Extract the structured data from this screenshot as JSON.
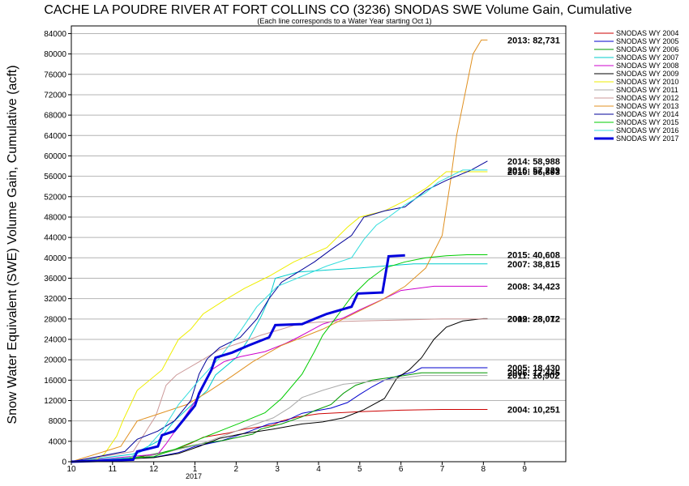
{
  "chart_data": {
    "type": "line",
    "title": "CACHE LA POUDRE RIVER AT FORT COLLINS CO (3236) SNODAS SWE Volume Gain, Cumulative",
    "subtitle": "(Each line corresponds to a Water Year starting Oct 1)",
    "ylabel": "Snow Water Equivalent (SWE) Volume Gain, Cumulative (acft)",
    "xlabel": "",
    "ylim": [
      0,
      85500
    ],
    "yticks": [
      0,
      4000,
      8000,
      12000,
      16000,
      20000,
      24000,
      28000,
      32000,
      36000,
      40000,
      44000,
      48000,
      52000,
      56000,
      60000,
      64000,
      68000,
      72000,
      76000,
      80000,
      84000
    ],
    "xlim": [
      0,
      12
    ],
    "xtick_positions": [
      0,
      1,
      2,
      3,
      4,
      5,
      6,
      7,
      8,
      9,
      10,
      11
    ],
    "xtick_labels": [
      "10",
      "11",
      "12",
      "1",
      "2",
      "3",
      "4",
      "5",
      "6",
      "7",
      "8",
      "9"
    ],
    "year_label": "2017",
    "grid": true,
    "legend_position": "right",
    "series": [
      {
        "name": "SNODAS WY 2004",
        "color": "#cc0000",
        "width": 1,
        "end_label": "2004: 10,251",
        "points": [
          [
            0,
            0
          ],
          [
            0.3,
            200
          ],
          [
            1.2,
            600
          ],
          [
            1.8,
            1000
          ],
          [
            2.4,
            2000
          ],
          [
            2.9,
            3600
          ],
          [
            3.2,
            4800
          ],
          [
            3.8,
            5600
          ],
          [
            4.2,
            6400
          ],
          [
            4.9,
            7200
          ],
          [
            5.1,
            8000
          ],
          [
            5.5,
            8800
          ],
          [
            6,
            9400
          ],
          [
            7,
            9800
          ],
          [
            8,
            10100
          ],
          [
            9,
            10251
          ],
          [
            10.1,
            10251
          ]
        ]
      },
      {
        "name": "SNODAS WY 2005",
        "color": "#0000cc",
        "width": 1,
        "end_label": "2005: 18,430",
        "points": [
          [
            0,
            0
          ],
          [
            1,
            500
          ],
          [
            1.6,
            700
          ],
          [
            2.1,
            1000
          ],
          [
            2.6,
            1800
          ],
          [
            3,
            3000
          ],
          [
            3.6,
            4000
          ],
          [
            4.2,
            5600
          ],
          [
            4.8,
            7400
          ],
          [
            5.2,
            8000
          ],
          [
            5.6,
            9500
          ],
          [
            6.3,
            10500
          ],
          [
            6.7,
            11600
          ],
          [
            7,
            13200
          ],
          [
            7.3,
            14700
          ],
          [
            7.6,
            16000
          ],
          [
            8,
            17000
          ],
          [
            8.3,
            17600
          ],
          [
            8.5,
            18430
          ],
          [
            10.1,
            18430
          ]
        ]
      },
      {
        "name": "SNODAS WY 2006",
        "color": "#009900",
        "width": 1,
        "end_label": "2006: 17,445",
        "points": [
          [
            0,
            0
          ],
          [
            1.4,
            600
          ],
          [
            2.2,
            1800
          ],
          [
            2.6,
            2600
          ],
          [
            3.2,
            3600
          ],
          [
            3.7,
            4200
          ],
          [
            4.4,
            5400
          ],
          [
            4.6,
            6400
          ],
          [
            5.1,
            7400
          ],
          [
            5.6,
            8800
          ],
          [
            5.9,
            10000
          ],
          [
            6.3,
            11200
          ],
          [
            6.6,
            13400
          ],
          [
            6.9,
            15000
          ],
          [
            7.3,
            16000
          ],
          [
            8,
            16800
          ],
          [
            8.5,
            17445
          ],
          [
            10.1,
            17445
          ]
        ]
      },
      {
        "name": "SNODAS WY 2007",
        "color": "#00cccc",
        "width": 1,
        "end_label": "2007: 38,815",
        "points": [
          [
            0,
            0
          ],
          [
            1.5,
            1500
          ],
          [
            2.1,
            4000
          ],
          [
            2.5,
            8000
          ],
          [
            3.3,
            14000
          ],
          [
            3.5,
            17000
          ],
          [
            4,
            20400
          ],
          [
            4.3,
            24000
          ],
          [
            4.6,
            28400
          ],
          [
            4.8,
            32000
          ],
          [
            4.95,
            36000
          ],
          [
            5.5,
            37200
          ],
          [
            6.2,
            37600
          ],
          [
            7,
            38000
          ],
          [
            7.6,
            38400
          ],
          [
            8.3,
            38815
          ],
          [
            10.1,
            38815
          ]
        ]
      },
      {
        "name": "SNODAS WY 2008",
        "color": "#cc00cc",
        "width": 1,
        "end_label": "2008: 34,423",
        "points": [
          [
            0,
            0
          ],
          [
            2.1,
            1500
          ],
          [
            2.3,
            3500
          ],
          [
            2.6,
            7000
          ],
          [
            3.1,
            13000
          ],
          [
            3.4,
            18000
          ],
          [
            3.7,
            19600
          ],
          [
            4.1,
            20600
          ],
          [
            4.7,
            21600
          ],
          [
            5.2,
            23200
          ],
          [
            5.5,
            24400
          ],
          [
            6.1,
            27000
          ],
          [
            6.6,
            28200
          ],
          [
            7,
            29800
          ],
          [
            7.6,
            32000
          ],
          [
            8,
            33600
          ],
          [
            8.8,
            34423
          ],
          [
            10.1,
            34423
          ]
        ]
      },
      {
        "name": "SNODAS WY 2009",
        "color": "#000000",
        "width": 1,
        "end_label": "2009: 28,072",
        "points": [
          [
            0,
            0
          ],
          [
            2,
            800
          ],
          [
            2.6,
            1600
          ],
          [
            3.1,
            3000
          ],
          [
            3.6,
            4600
          ],
          [
            4.1,
            5400
          ],
          [
            4.9,
            6400
          ],
          [
            5.6,
            7400
          ],
          [
            6.1,
            7800
          ],
          [
            6.6,
            8600
          ],
          [
            7.1,
            10200
          ],
          [
            7.6,
            12400
          ],
          [
            7.9,
            16400
          ],
          [
            8.2,
            18000
          ],
          [
            8.5,
            20400
          ],
          [
            8.8,
            24000
          ],
          [
            9.1,
            26400
          ],
          [
            9.5,
            27600
          ],
          [
            10,
            28072
          ],
          [
            10.1,
            28072
          ]
        ]
      },
      {
        "name": "SNODAS WY 2010",
        "color": "#eeee00",
        "width": 1,
        "end_label": "2010: 56,893",
        "points": [
          [
            0,
            0
          ],
          [
            0.6,
            400
          ],
          [
            0.8,
            1500
          ],
          [
            1.1,
            5000
          ],
          [
            1.25,
            8000
          ],
          [
            1.6,
            14000
          ],
          [
            2.2,
            18000
          ],
          [
            2.6,
            24000
          ],
          [
            2.9,
            26000
          ],
          [
            3.2,
            29000
          ],
          [
            3.7,
            31600
          ],
          [
            4.2,
            34000
          ],
          [
            4.8,
            36400
          ],
          [
            5.4,
            39200
          ],
          [
            6.2,
            42000
          ],
          [
            6.7,
            46000
          ],
          [
            7,
            48000
          ],
          [
            7.6,
            49200
          ],
          [
            8.1,
            51200
          ],
          [
            8.6,
            53600
          ],
          [
            9.1,
            56893
          ],
          [
            10.1,
            56893
          ]
        ]
      },
      {
        "name": "SNODAS WY 2011",
        "color": "#aaaaaa",
        "width": 1,
        "end_label": "2011: 16,902",
        "points": [
          [
            0,
            0
          ],
          [
            1.7,
            800
          ],
          [
            2.4,
            2000
          ],
          [
            3.1,
            3400
          ],
          [
            3.6,
            4800
          ],
          [
            4.2,
            6600
          ],
          [
            4.9,
            8600
          ],
          [
            5.3,
            10600
          ],
          [
            5.6,
            12600
          ],
          [
            6.1,
            14000
          ],
          [
            6.6,
            15200
          ],
          [
            7.6,
            16000
          ],
          [
            8.5,
            16902
          ],
          [
            10.1,
            16902
          ]
        ]
      },
      {
        "name": "SNODAS WY 2012",
        "color": "#cc9999",
        "width": 1,
        "end_label": "2012: 28,012",
        "points": [
          [
            0,
            0
          ],
          [
            1.5,
            2000
          ],
          [
            2.05,
            9000
          ],
          [
            2.3,
            15000
          ],
          [
            2.55,
            17000
          ],
          [
            3.1,
            19600
          ],
          [
            3.6,
            22000
          ],
          [
            4.2,
            23600
          ],
          [
            4.6,
            24800
          ],
          [
            5.1,
            26000
          ],
          [
            5.5,
            27000
          ],
          [
            6,
            27400
          ],
          [
            7,
            27600
          ],
          [
            8,
            27800
          ],
          [
            9,
            28012
          ],
          [
            10.1,
            28012
          ]
        ]
      },
      {
        "name": "SNODAS WY 2013",
        "color": "#e09020",
        "width": 1,
        "end_label": "2013: 82,731",
        "points": [
          [
            0,
            0
          ],
          [
            1.2,
            3000
          ],
          [
            1.6,
            8000
          ],
          [
            2.2,
            9600
          ],
          [
            2.8,
            11200
          ],
          [
            3.3,
            13600
          ],
          [
            3.9,
            16800
          ],
          [
            4.4,
            19600
          ],
          [
            5.1,
            22800
          ],
          [
            5.6,
            24400
          ],
          [
            6.1,
            26000
          ],
          [
            6.6,
            28000
          ],
          [
            7,
            29600
          ],
          [
            7.5,
            31600
          ],
          [
            8.1,
            34400
          ],
          [
            8.6,
            38000
          ],
          [
            9.0,
            44400
          ],
          [
            9.2,
            55000
          ],
          [
            9.35,
            64000
          ],
          [
            9.55,
            72000
          ],
          [
            9.75,
            80000
          ],
          [
            9.95,
            82731
          ],
          [
            10.1,
            82731
          ]
        ]
      },
      {
        "name": "SNODAS WY 2014",
        "color": "#000099",
        "width": 1,
        "end_label": "2014: 58,988",
        "points": [
          [
            0,
            0
          ],
          [
            1.3,
            2000
          ],
          [
            1.6,
            4400
          ],
          [
            2.1,
            6000
          ],
          [
            2.5,
            8000
          ],
          [
            2.9,
            12000
          ],
          [
            3.1,
            17200
          ],
          [
            3.3,
            20200
          ],
          [
            3.6,
            22400
          ],
          [
            4.1,
            24400
          ],
          [
            4.5,
            28000
          ],
          [
            4.8,
            32000
          ],
          [
            5.1,
            35200
          ],
          [
            5.5,
            37200
          ],
          [
            5.9,
            39200
          ],
          [
            6.3,
            41600
          ],
          [
            6.8,
            44400
          ],
          [
            7.1,
            48000
          ],
          [
            7.6,
            49200
          ],
          [
            8.1,
            50000
          ],
          [
            8.6,
            53200
          ],
          [
            9.1,
            55200
          ],
          [
            9.7,
            57200
          ],
          [
            10.1,
            58988
          ]
        ]
      },
      {
        "name": "SNODAS WY 2015",
        "color": "#00cc00",
        "width": 1,
        "end_label": "2015: 40,608",
        "points": [
          [
            0,
            0
          ],
          [
            2,
            1000
          ],
          [
            2.5,
            2400
          ],
          [
            3.1,
            4400
          ],
          [
            3.6,
            6000
          ],
          [
            4.1,
            7600
          ],
          [
            4.7,
            9600
          ],
          [
            5.1,
            12400
          ],
          [
            5.6,
            17200
          ],
          [
            5.9,
            21600
          ],
          [
            6.1,
            24800
          ],
          [
            6.4,
            28000
          ],
          [
            6.8,
            32400
          ],
          [
            7.2,
            35600
          ],
          [
            7.6,
            38000
          ],
          [
            8.1,
            39200
          ],
          [
            8.6,
            40000
          ],
          [
            9.1,
            40400
          ],
          [
            9.6,
            40608
          ],
          [
            10.1,
            40608
          ]
        ]
      },
      {
        "name": "SNODAS WY 2016",
        "color": "#33dddd",
        "width": 1,
        "end_label": "2016: 57,229",
        "points": [
          [
            0,
            0
          ],
          [
            1.4,
            800
          ],
          [
            1.8,
            2400
          ],
          [
            2.2,
            6000
          ],
          [
            2.6,
            11200
          ],
          [
            3.1,
            16000
          ],
          [
            3.6,
            20400
          ],
          [
            4.1,
            25600
          ],
          [
            4.5,
            30400
          ],
          [
            5,
            34400
          ],
          [
            5.6,
            36400
          ],
          [
            6.2,
            38400
          ],
          [
            6.8,
            40000
          ],
          [
            7.1,
            43600
          ],
          [
            7.4,
            46400
          ],
          [
            7.7,
            48000
          ],
          [
            8.1,
            50400
          ],
          [
            8.6,
            52800
          ],
          [
            8.9,
            54800
          ],
          [
            9.1,
            55600
          ],
          [
            9.5,
            57229
          ],
          [
            10.1,
            57229
          ]
        ]
      },
      {
        "name": "SNODAS WY 2017",
        "color": "#0000dd",
        "width": 3,
        "end_label": "",
        "points": [
          [
            0,
            0
          ],
          [
            1.5,
            400
          ],
          [
            1.6,
            2000
          ],
          [
            2.1,
            3000
          ],
          [
            2.2,
            5200
          ],
          [
            2.5,
            6000
          ],
          [
            2.6,
            7000
          ],
          [
            3.0,
            11000
          ],
          [
            3.1,
            13400
          ],
          [
            3.4,
            18000
          ],
          [
            3.5,
            20400
          ],
          [
            3.9,
            21400
          ],
          [
            4.3,
            22800
          ],
          [
            4.8,
            24400
          ],
          [
            4.95,
            26800
          ],
          [
            5.6,
            27000
          ],
          [
            5.95,
            28200
          ],
          [
            6.2,
            29000
          ],
          [
            6.8,
            30400
          ],
          [
            6.95,
            33000
          ],
          [
            7.55,
            33200
          ],
          [
            7.7,
            40300
          ],
          [
            8.1,
            40500
          ]
        ]
      }
    ]
  }
}
